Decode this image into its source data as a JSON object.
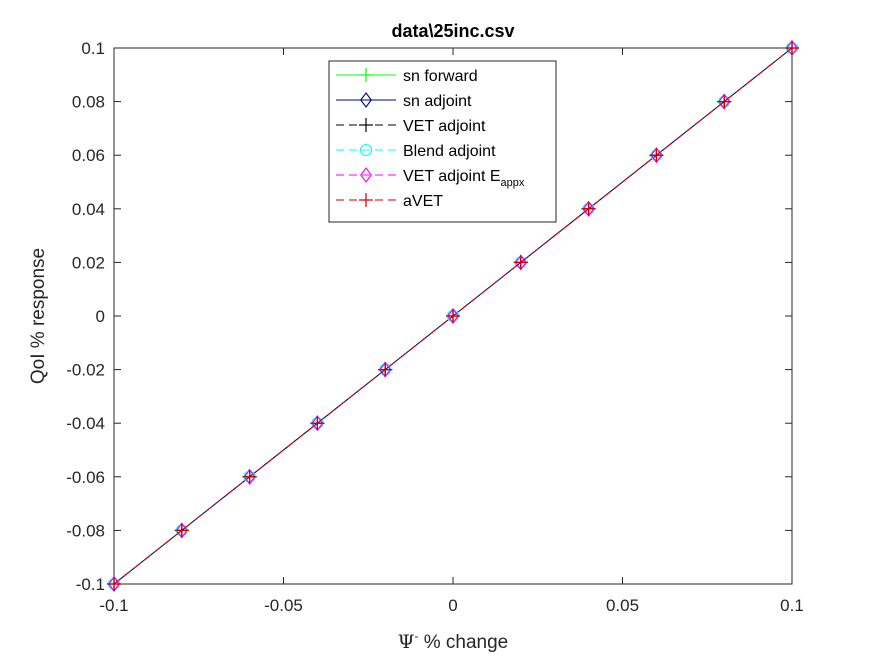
{
  "chart_data": {
    "type": "line",
    "title": "data\\25inc.csv",
    "xlabel_symbol": "Ψ",
    "xlabel_sup": "-",
    "xlabel_rest": " % change",
    "ylabel": "QoI % response",
    "xlim": [
      -0.1,
      0.1
    ],
    "ylim": [
      -0.1,
      0.1
    ],
    "xticks": [
      -0.1,
      -0.05,
      0,
      0.05,
      0.1
    ],
    "xtick_labels": [
      "-0.1",
      "-0.05",
      "0",
      "0.05",
      "0.1"
    ],
    "yticks": [
      -0.1,
      -0.08,
      -0.06,
      -0.04,
      -0.02,
      0,
      0.02,
      0.04,
      0.06,
      0.08,
      0.1
    ],
    "ytick_labels": [
      "-0.1",
      "-0.08",
      "-0.06",
      "-0.04",
      "-0.02",
      "0",
      "0.02",
      "0.04",
      "0.06",
      "0.08",
      "0.1"
    ],
    "grid": false,
    "legend_position": "top-center",
    "x": [
      -0.1,
      -0.08,
      -0.06,
      -0.04,
      -0.02,
      0,
      0.02,
      0.04,
      0.06,
      0.08,
      0.1
    ],
    "series": [
      {
        "name": "sn forward",
        "legend_sub": "",
        "color": "#00ff00",
        "marker": "plus",
        "dash": "solid",
        "values": [
          -0.1,
          -0.08,
          -0.06,
          -0.04,
          -0.02,
          0,
          0.02,
          0.04,
          0.06,
          0.08,
          0.1
        ]
      },
      {
        "name": "sn adjoint",
        "legend_sub": "",
        "color": "#00008b",
        "marker": "diamond",
        "dash": "solid",
        "values": [
          -0.1,
          -0.08,
          -0.06,
          -0.04,
          -0.02,
          0,
          0.02,
          0.04,
          0.06,
          0.08,
          0.1
        ]
      },
      {
        "name": "VET adjoint",
        "legend_sub": "",
        "color": "#000000",
        "marker": "plus",
        "dash": "dashed",
        "values": [
          -0.1,
          -0.08,
          -0.06,
          -0.04,
          -0.02,
          0,
          0.02,
          0.04,
          0.06,
          0.08,
          0.1
        ]
      },
      {
        "name": "Blend adjoint",
        "legend_sub": "",
        "color": "#00ffff",
        "marker": "circle",
        "dash": "dashed",
        "values": [
          -0.1,
          -0.08,
          -0.06,
          -0.04,
          -0.02,
          0,
          0.02,
          0.04,
          0.06,
          0.08,
          0.1
        ]
      },
      {
        "name": "VET adjoint E",
        "legend_sub": "appx",
        "color": "#ff00ff",
        "marker": "diamond",
        "dash": "dashed",
        "values": [
          -0.1,
          -0.08,
          -0.06,
          -0.04,
          -0.02,
          0,
          0.02,
          0.04,
          0.06,
          0.08,
          0.1
        ]
      },
      {
        "name": "aVET",
        "legend_sub": "",
        "color": "#cc0000",
        "marker": "plus",
        "dash": "dashed",
        "values": [
          -0.1,
          -0.08,
          -0.06,
          -0.04,
          -0.02,
          0,
          0.02,
          0.04,
          0.06,
          0.08,
          0.1
        ]
      }
    ]
  }
}
